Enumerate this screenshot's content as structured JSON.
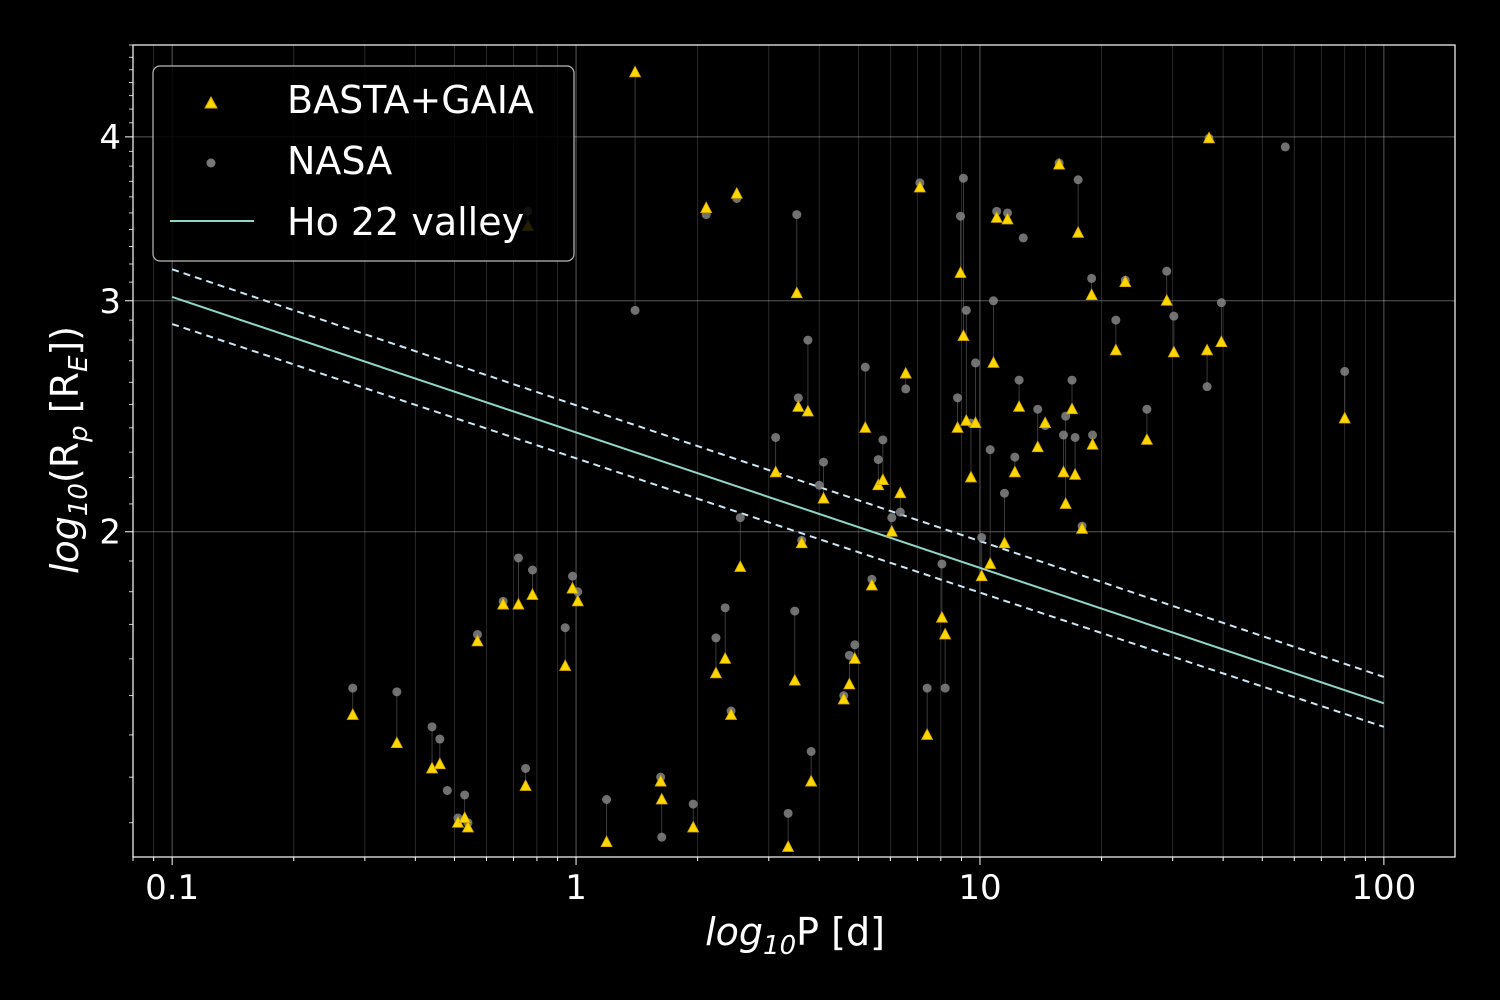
{
  "chart_data": {
    "type": "scatter",
    "xscale": "log",
    "yscale": "log",
    "xlim": [
      0.08,
      150
    ],
    "ylim": [
      1.13,
      4.7
    ],
    "grid": true,
    "legend": "top-left",
    "xlabel_parts": [
      "log",
      "10",
      "P [d]"
    ],
    "ylabel_parts": [
      "log",
      "10",
      "(R",
      "p",
      " [R",
      "E",
      "])"
    ],
    "xticks": [
      {
        "value": 0.1,
        "label": "0.1"
      },
      {
        "value": 1,
        "label": "1"
      },
      {
        "value": 10,
        "label": "10"
      },
      {
        "value": 100,
        "label": "100"
      }
    ],
    "yticks": [
      {
        "value": 2,
        "label": "2"
      },
      {
        "value": 3,
        "label": "3"
      },
      {
        "value": 4,
        "label": "4"
      }
    ],
    "series": [
      {
        "name": "BASTA+GAIA",
        "color": "#ffd700",
        "marker": "triangle"
      },
      {
        "name": "NASA",
        "color": "#8c8c8c",
        "marker": "circle"
      },
      {
        "name": "Ho 22 valley",
        "color": "#8fd6c8",
        "marker": "line"
      }
    ],
    "valley": {
      "center": [
        [
          0.1,
          3.02
        ],
        [
          100,
          1.48
        ]
      ],
      "upper": [
        [
          0.1,
          3.17
        ],
        [
          100,
          1.55
        ]
      ],
      "lower": [
        [
          0.1,
          2.88
        ],
        [
          100,
          1.42
        ]
      ]
    },
    "pairs": [
      {
        "p": 0.28,
        "basta": 1.45,
        "nasa": 1.52
      },
      {
        "p": 0.36,
        "basta": 1.38,
        "nasa": 1.51
      },
      {
        "p": 0.44,
        "basta": 1.32,
        "nasa": 1.42
      },
      {
        "p": 0.46,
        "basta": 1.33,
        "nasa": 1.39
      },
      {
        "p": 0.48,
        "nasa": 1.27
      },
      {
        "p": 0.51,
        "basta": 1.2,
        "nasa": 1.21
      },
      {
        "p": 0.53,
        "basta": 1.21,
        "nasa": 1.26
      },
      {
        "p": 0.54,
        "basta": 1.19,
        "nasa": 1.2
      },
      {
        "p": 0.57,
        "basta": 1.65,
        "nasa": 1.67
      },
      {
        "p": 0.66,
        "basta": 1.76,
        "nasa": 1.77
      },
      {
        "p": 0.72,
        "basta": 1.76,
        "nasa": 1.91
      },
      {
        "p": 0.75,
        "basta": 1.28,
        "nasa": 1.32
      },
      {
        "p": 0.76,
        "basta": 3.42,
        "nasa": 3.51
      },
      {
        "p": 0.78,
        "basta": 1.79,
        "nasa": 1.87
      },
      {
        "p": 0.94,
        "basta": 1.58,
        "nasa": 1.69
      },
      {
        "p": 0.98,
        "basta": 1.81,
        "nasa": 1.85
      },
      {
        "p": 1.01,
        "basta": 1.77,
        "nasa": 1.8
      },
      {
        "p": 1.19,
        "basta": 1.16,
        "nasa": 1.25
      },
      {
        "p": 1.4,
        "basta": 4.48,
        "nasa": 2.95
      },
      {
        "p": 1.62,
        "basta": 1.29,
        "nasa": 1.3
      },
      {
        "p": 1.63,
        "basta": 1.25,
        "nasa": 1.17
      },
      {
        "p": 1.95,
        "basta": 1.19,
        "nasa": 1.24
      },
      {
        "p": 2.1,
        "basta": 3.53,
        "nasa": 3.49
      },
      {
        "p": 2.22,
        "basta": 1.56,
        "nasa": 1.66
      },
      {
        "p": 2.34,
        "basta": 1.6,
        "nasa": 1.75
      },
      {
        "p": 2.42,
        "basta": 1.45,
        "nasa": 1.46
      },
      {
        "p": 2.5,
        "basta": 3.62,
        "nasa": 3.59
      },
      {
        "p": 2.55,
        "basta": 1.88,
        "nasa": 2.05
      },
      {
        "p": 3.12,
        "basta": 2.22,
        "nasa": 2.36
      },
      {
        "p": 3.35,
        "basta": 1.15,
        "nasa": 1.22
      },
      {
        "p": 3.48,
        "basta": 1.54,
        "nasa": 1.74
      },
      {
        "p": 3.52,
        "basta": 3.04,
        "nasa": 3.49
      },
      {
        "p": 3.55,
        "basta": 2.49,
        "nasa": 2.53
      },
      {
        "p": 3.62,
        "basta": 1.96,
        "nasa": 1.97
      },
      {
        "p": 3.75,
        "basta": 2.47,
        "nasa": 2.8
      },
      {
        "p": 3.82,
        "basta": 1.29,
        "nasa": 1.36
      },
      {
        "p": 4.0,
        "nasa": 2.17
      },
      {
        "p": 4.1,
        "basta": 2.12,
        "nasa": 2.26
      },
      {
        "p": 4.6,
        "basta": 1.49,
        "nasa": 1.5
      },
      {
        "p": 4.75,
        "basta": 1.53,
        "nasa": 1.61
      },
      {
        "p": 4.9,
        "basta": 1.6,
        "nasa": 1.64
      },
      {
        "p": 5.2,
        "basta": 2.4,
        "nasa": 2.67
      },
      {
        "p": 5.4,
        "basta": 1.82,
        "nasa": 1.84
      },
      {
        "p": 5.6,
        "basta": 2.17,
        "nasa": 2.27
      },
      {
        "p": 5.75,
        "basta": 2.19,
        "nasa": 2.35
      },
      {
        "p": 6.05,
        "basta": 2.0,
        "nasa": 2.05
      },
      {
        "p": 6.35,
        "basta": 2.14,
        "nasa": 2.07
      },
      {
        "p": 6.55,
        "basta": 2.64,
        "nasa": 2.57
      },
      {
        "p": 7.1,
        "basta": 3.66,
        "nasa": 3.69
      },
      {
        "p": 7.4,
        "basta": 1.4,
        "nasa": 1.52
      },
      {
        "p": 8.05,
        "basta": 1.72,
        "nasa": 1.89
      },
      {
        "p": 8.2,
        "basta": 1.67,
        "nasa": 1.52
      },
      {
        "p": 8.8,
        "basta": 2.4,
        "nasa": 2.53
      },
      {
        "p": 8.95,
        "basta": 3.15,
        "nasa": 3.48
      },
      {
        "p": 9.1,
        "basta": 2.82,
        "nasa": 3.72
      },
      {
        "p": 9.25,
        "basta": 2.43,
        "nasa": 2.95
      },
      {
        "p": 9.5,
        "basta": 2.2,
        "nasa": 2.42
      },
      {
        "p": 9.75,
        "basta": 2.42,
        "nasa": 2.69
      },
      {
        "p": 10.1,
        "basta": 1.85,
        "nasa": 1.98
      },
      {
        "p": 10.6,
        "basta": 1.89,
        "nasa": 2.31
      },
      {
        "p": 10.8,
        "basta": 2.69,
        "nasa": 3.0
      },
      {
        "p": 11.0,
        "basta": 3.47,
        "nasa": 3.51
      },
      {
        "p": 11.5,
        "basta": 1.96,
        "nasa": 2.14
      },
      {
        "p": 11.7,
        "basta": 3.46,
        "nasa": 3.5
      },
      {
        "p": 12.2,
        "basta": 2.22,
        "nasa": 2.28
      },
      {
        "p": 12.5,
        "basta": 2.49,
        "nasa": 2.61
      },
      {
        "p": 12.8,
        "nasa": 3.35
      },
      {
        "p": 13.9,
        "basta": 2.32,
        "nasa": 2.48
      },
      {
        "p": 14.5,
        "basta": 2.42,
        "nasa": 2.41
      },
      {
        "p": 15.7,
        "basta": 3.81,
        "nasa": 3.82
      },
      {
        "p": 16.1,
        "basta": 2.22,
        "nasa": 2.37
      },
      {
        "p": 16.3,
        "basta": 2.1,
        "nasa": 2.45
      },
      {
        "p": 16.9,
        "basta": 2.48,
        "nasa": 2.61
      },
      {
        "p": 17.2,
        "basta": 2.21,
        "nasa": 2.36
      },
      {
        "p": 17.5,
        "basta": 3.38,
        "nasa": 3.71
      },
      {
        "p": 17.9,
        "basta": 2.01,
        "nasa": 2.02
      },
      {
        "p": 18.9,
        "basta": 3.03,
        "nasa": 3.12
      },
      {
        "p": 19.0,
        "basta": 2.33,
        "nasa": 2.37
      },
      {
        "p": 21.7,
        "basta": 2.75,
        "nasa": 2.9
      },
      {
        "p": 22.9,
        "basta": 3.1,
        "nasa": 3.11
      },
      {
        "p": 25.9,
        "basta": 2.35,
        "nasa": 2.48
      },
      {
        "p": 29.0,
        "basta": 3.0,
        "nasa": 3.16
      },
      {
        "p": 30.2,
        "basta": 2.74,
        "nasa": 2.92
      },
      {
        "p": 36.5,
        "basta": 2.75,
        "nasa": 2.58
      },
      {
        "p": 36.9,
        "basta": 3.99,
        "nasa": 3.99
      },
      {
        "p": 39.6,
        "basta": 2.79,
        "nasa": 2.99
      },
      {
        "p": 57.0,
        "nasa": 3.93
      },
      {
        "p": 80.0,
        "basta": 2.44,
        "nasa": 2.65
      }
    ]
  }
}
